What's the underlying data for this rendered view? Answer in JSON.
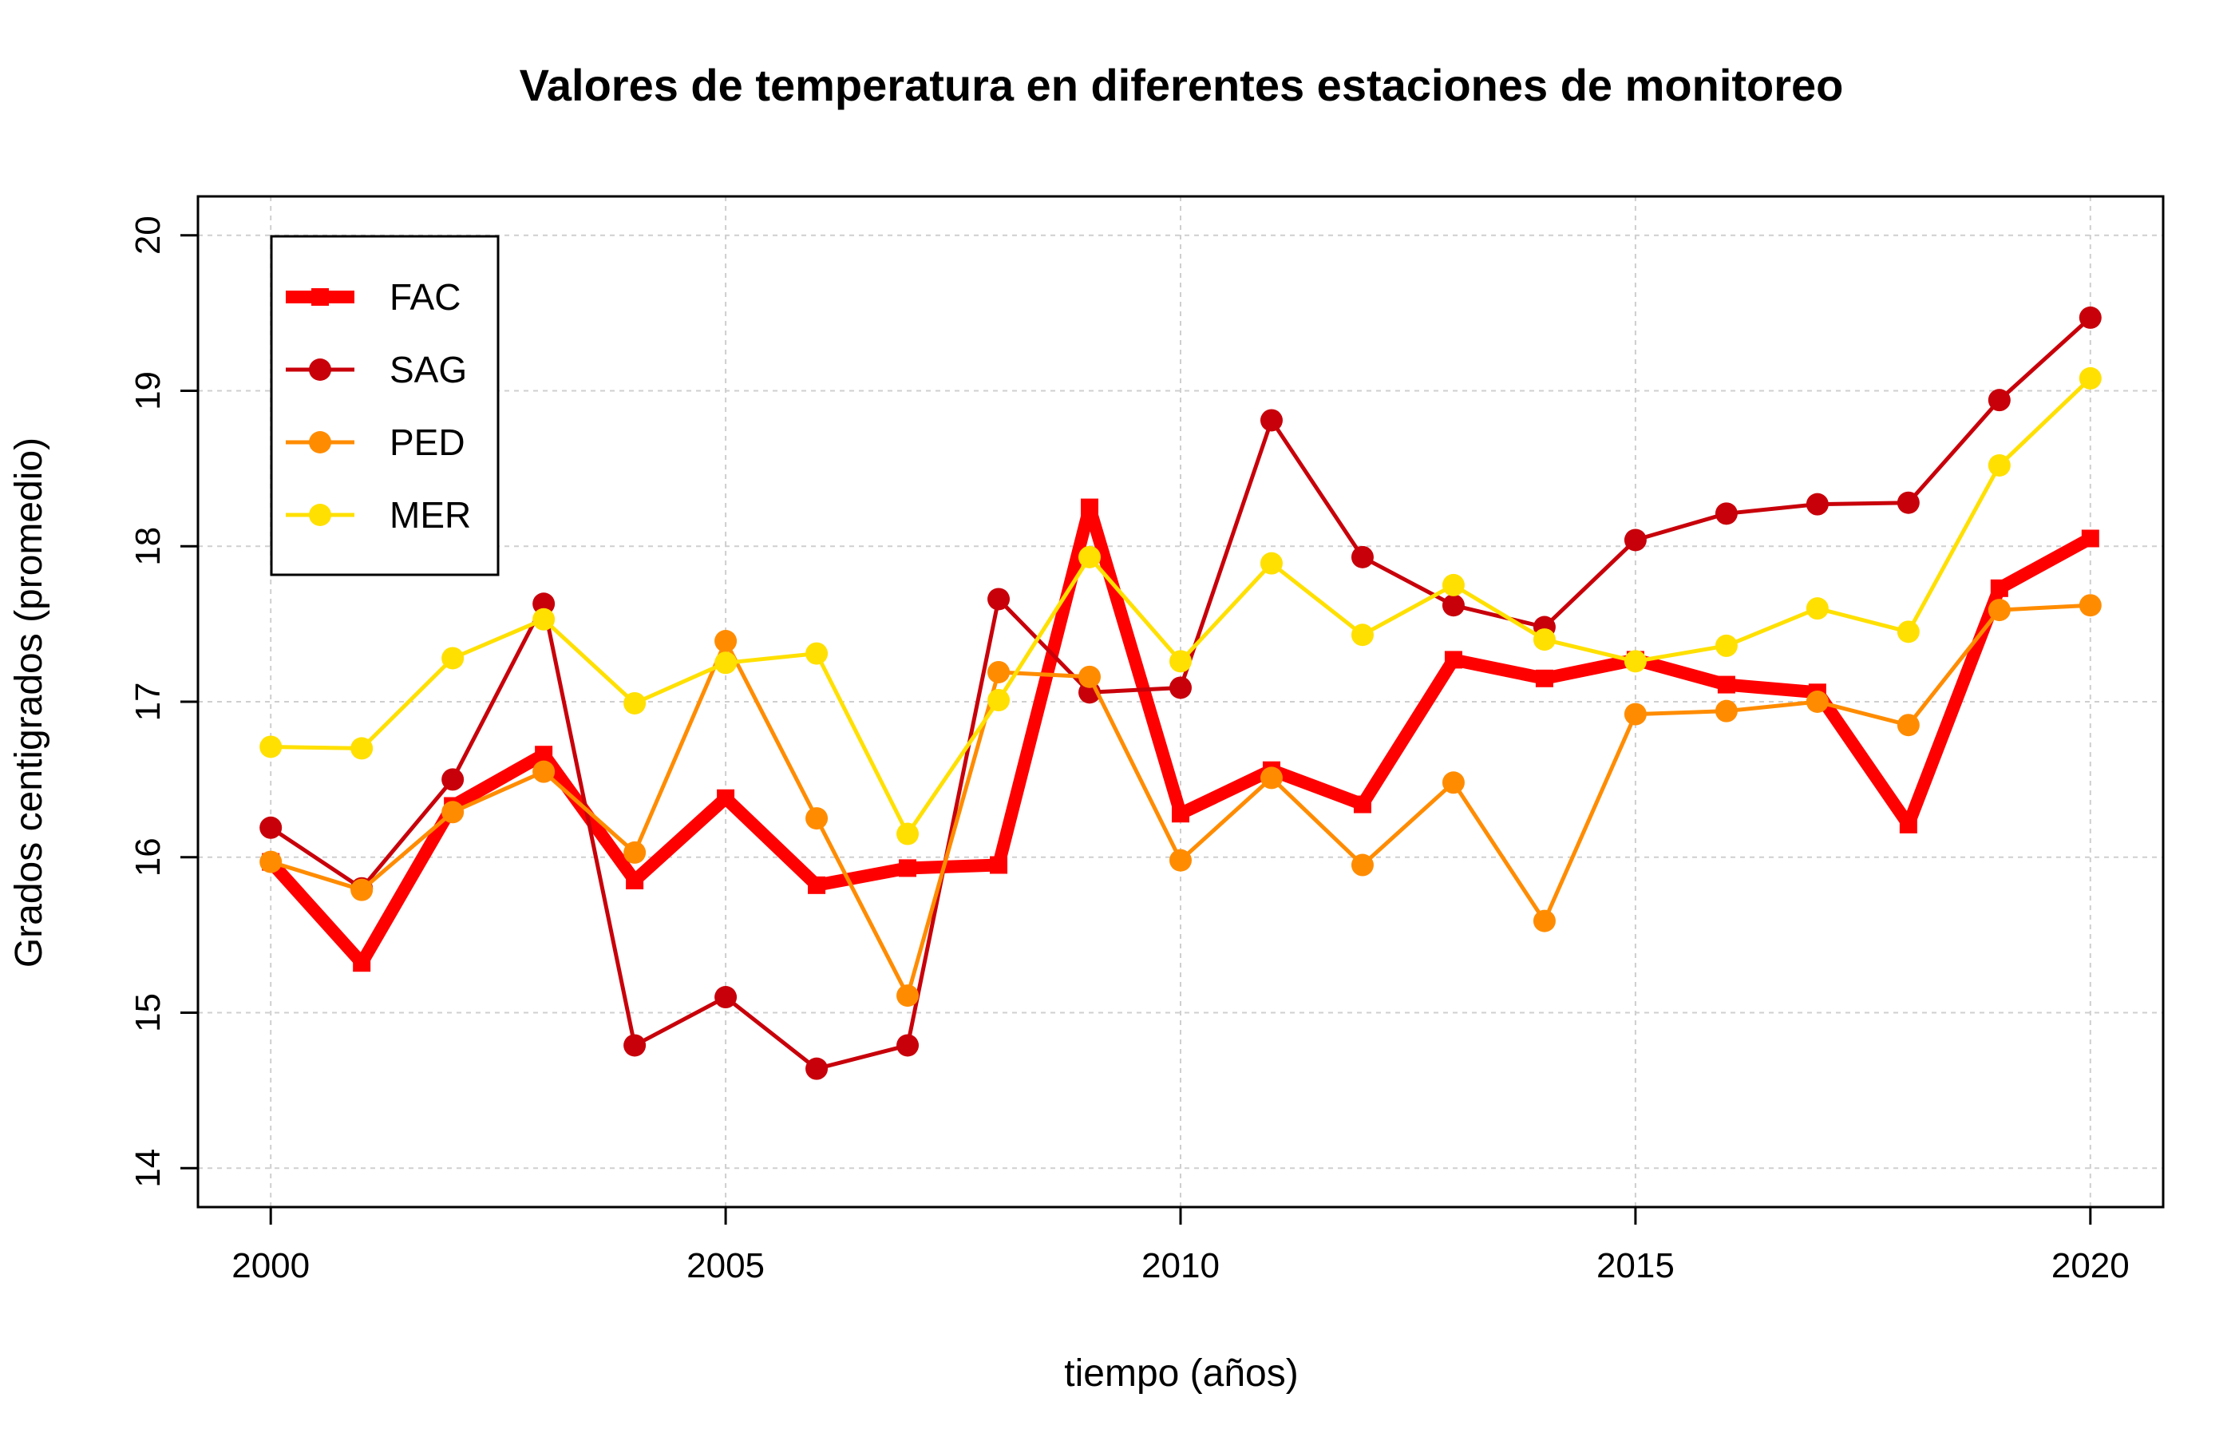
{
  "chart_data": {
    "type": "line",
    "title": "Valores de temperatura en diferentes estaciones de monitoreo",
    "xlabel": "tiempo (años)",
    "ylabel": "Grados centigrados (promedio)",
    "xlim": [
      1999.2,
      2020.8
    ],
    "ylim": [
      13.75,
      20.25
    ],
    "x_ticks": [
      2000,
      2005,
      2010,
      2015,
      2020
    ],
    "y_ticks": [
      14,
      15,
      16,
      17,
      18,
      19,
      20
    ],
    "grid": true,
    "legend_position": "top-left",
    "x": [
      2000,
      2001,
      2002,
      2003,
      2004,
      2005,
      2006,
      2007,
      2008,
      2009,
      2010,
      2011,
      2012,
      2013,
      2014,
      2015,
      2016,
      2017,
      2018,
      2019,
      2020
    ],
    "series": [
      {
        "name": "FAC",
        "color": "#ff0000",
        "marker": "square",
        "line_weight": "thick",
        "values": [
          15.97,
          15.32,
          16.33,
          16.66,
          15.85,
          16.38,
          15.82,
          15.93,
          15.95,
          18.25,
          16.28,
          16.56,
          16.34,
          17.27,
          17.15,
          17.27,
          17.11,
          17.06,
          16.21,
          17.73,
          18.05
        ]
      },
      {
        "name": "SAG",
        "color": "#c8000a",
        "marker": "circle",
        "line_weight": "normal",
        "values": [
          16.19,
          15.8,
          16.5,
          17.63,
          14.79,
          15.1,
          14.64,
          14.79,
          17.66,
          17.06,
          17.09,
          18.81,
          17.93,
          17.62,
          17.48,
          18.04,
          18.21,
          18.27,
          18.28,
          18.94,
          19.47
        ]
      },
      {
        "name": "PED",
        "color": "#ff8c00",
        "marker": "circle",
        "line_weight": "normal",
        "values": [
          15.97,
          15.79,
          16.29,
          16.55,
          16.03,
          17.39,
          16.25,
          15.11,
          17.19,
          17.16,
          15.98,
          16.51,
          15.95,
          16.48,
          15.59,
          16.92,
          16.94,
          17.0,
          16.85,
          17.59,
          17.62
        ]
      },
      {
        "name": "MER",
        "color": "#ffe000",
        "marker": "circle",
        "line_weight": "normal",
        "values": [
          16.71,
          16.7,
          17.28,
          17.53,
          16.99,
          17.25,
          17.31,
          16.15,
          17.01,
          17.93,
          17.26,
          17.89,
          17.43,
          17.75,
          17.4,
          17.26,
          17.36,
          17.6,
          17.45,
          18.52,
          19.08
        ]
      }
    ]
  }
}
